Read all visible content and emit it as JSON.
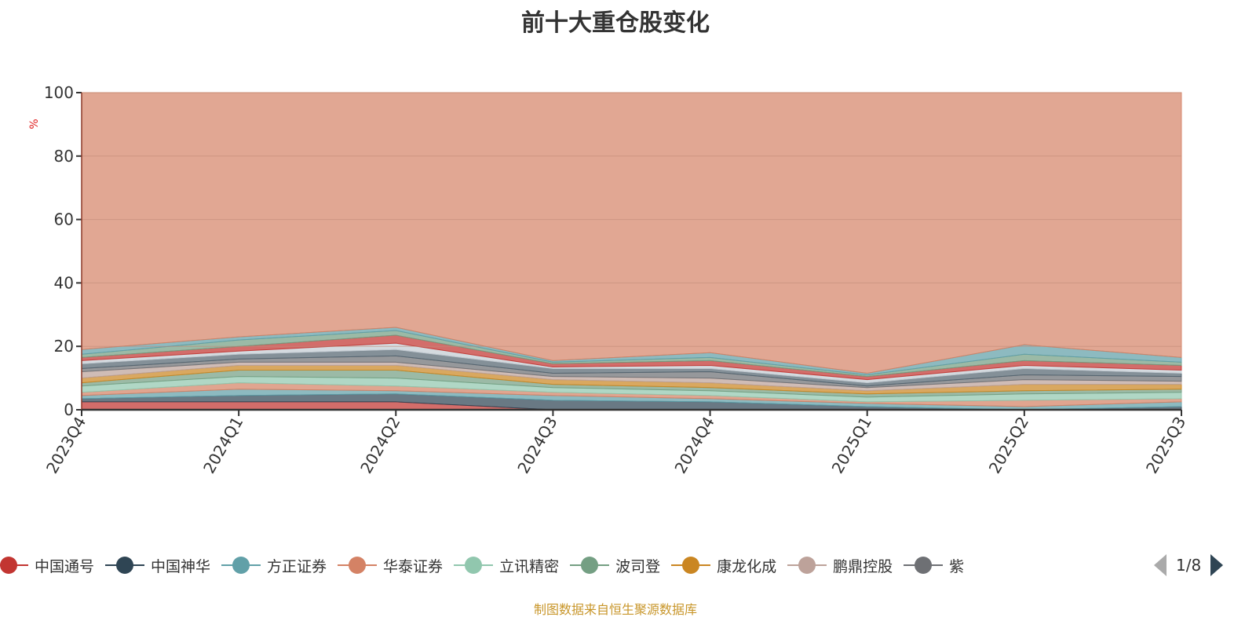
{
  "chart_data": {
    "type": "area",
    "stacked": true,
    "title": "前十大重仓股变化",
    "ylabel": "%",
    "xlabel": "",
    "ylim": [
      0,
      100
    ],
    "yticks": [
      "0",
      "20",
      "40",
      "60",
      "80",
      "100"
    ],
    "categories": [
      "2023Q4",
      "2024Q1",
      "2024Q2",
      "2024Q3",
      "2024Q4",
      "2025Q1",
      "2025Q2",
      "2025Q3"
    ],
    "grid": true,
    "legend_position": "bottom",
    "series": [
      {
        "name": "中国通号",
        "color": "#c23531",
        "values": [
          2.5,
          2.5,
          2.5,
          0,
          0,
          0,
          0,
          0
        ]
      },
      {
        "name": "中国神华",
        "color": "#2f4554",
        "values": [
          1,
          2,
          2.5,
          3,
          2.5,
          1,
          0,
          1
        ]
      },
      {
        "name": "方正证券",
        "color": "#61a0a8",
        "values": [
          1,
          2,
          1,
          1.5,
          1,
          1,
          1,
          1.5
        ]
      },
      {
        "name": "华泰证券",
        "color": "#d48265",
        "values": [
          1,
          2,
          1.5,
          1,
          1,
          0.5,
          2,
          1
        ]
      },
      {
        "name": "立讯精密",
        "color": "#91c7ae",
        "values": [
          2,
          2,
          2.5,
          1.5,
          1.5,
          1.5,
          2,
          2
        ]
      },
      {
        "name": "波司登",
        "color": "#749f83",
        "values": [
          1,
          2,
          2.5,
          1,
          1,
          1,
          1,
          1
        ]
      },
      {
        "name": "康龙化成",
        "color": "#ca8622",
        "values": [
          1.5,
          1.5,
          1.5,
          1.5,
          1.5,
          1,
          2,
          1.5
        ]
      },
      {
        "name": "鹏鼎控股",
        "color": "#bda29a",
        "values": [
          2,
          1,
          1,
          1,
          1.5,
          1,
          1.5,
          1
        ]
      },
      {
        "name": "紫",
        "color": "#6e7074",
        "values": [
          1,
          1,
          2,
          1,
          2,
          0.5,
          1.5,
          1.5
        ]
      },
      {
        "name": "",
        "color": "#546570",
        "values": [
          1.5,
          1.5,
          2,
          1.5,
          1,
          1,
          2,
          1
        ]
      },
      {
        "name": "",
        "color": "#c4ccd3",
        "values": [
          1,
          1,
          2,
          0.5,
          1,
          1,
          1,
          1
        ]
      },
      {
        "name": "",
        "color": "#c23531",
        "values": [
          1,
          1.5,
          2.5,
          1,
          1.5,
          1,
          1.5,
          1.5
        ]
      },
      {
        "name": "",
        "color": "#749f83",
        "values": [
          1,
          2,
          1.5,
          0.5,
          1,
          0.5,
          2,
          1
        ]
      },
      {
        "name": "",
        "color": "#61a0a8",
        "values": [
          1.5,
          1,
          1,
          0.5,
          1.5,
          0.5,
          3,
          1.5
        ]
      },
      {
        "name": "",
        "color": "#d48265",
        "values": [
          81,
          77,
          74,
          84.5,
          82.5,
          88.5,
          79.5,
          84.5
        ]
      }
    ]
  },
  "legend": {
    "visible_items": [
      0,
      1,
      2,
      3,
      4,
      5,
      6,
      7,
      8
    ],
    "page": "1/8"
  },
  "source": "制图数据来自恒生聚源数据库"
}
